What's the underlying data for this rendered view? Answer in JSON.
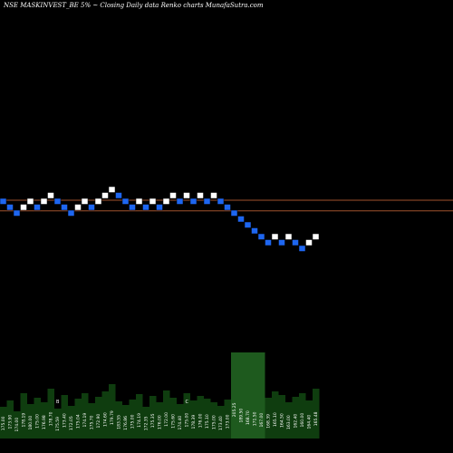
{
  "header": {
    "title": "NSE MASKINVEST_BE 5% ~  Closing Daily data  Renko  charts MunafaSutra.com"
  },
  "colors": {
    "background": "#000000",
    "up_brick": "#ffffff",
    "down_brick": "#1e66f0",
    "reference_line": "#a0522d",
    "volume_fill": "#0f3d0f",
    "volume_highlight": "#1e5a1e",
    "label_text": "#ffffff"
  },
  "chart_data": {
    "type": "renko",
    "bricks": [
      {
        "level": 0,
        "dir": "down"
      },
      {
        "level": -1,
        "dir": "down"
      },
      {
        "level": -2,
        "dir": "down"
      },
      {
        "level": -1,
        "dir": "up"
      },
      {
        "level": 0,
        "dir": "up"
      },
      {
        "level": -1,
        "dir": "down"
      },
      {
        "level": 0,
        "dir": "up"
      },
      {
        "level": 1,
        "dir": "up"
      },
      {
        "level": 0,
        "dir": "down"
      },
      {
        "level": -1,
        "dir": "down"
      },
      {
        "level": -2,
        "dir": "down"
      },
      {
        "level": -1,
        "dir": "up"
      },
      {
        "level": 0,
        "dir": "up"
      },
      {
        "level": -1,
        "dir": "down"
      },
      {
        "level": 0,
        "dir": "up"
      },
      {
        "level": 1,
        "dir": "up"
      },
      {
        "level": 2,
        "dir": "up"
      },
      {
        "level": 1,
        "dir": "down"
      },
      {
        "level": 0,
        "dir": "down"
      },
      {
        "level": -1,
        "dir": "down"
      },
      {
        "level": 0,
        "dir": "up"
      },
      {
        "level": -1,
        "dir": "down"
      },
      {
        "level": 0,
        "dir": "up"
      },
      {
        "level": -1,
        "dir": "down"
      },
      {
        "level": 0,
        "dir": "up"
      },
      {
        "level": 1,
        "dir": "up"
      },
      {
        "level": 0,
        "dir": "down"
      },
      {
        "level": 1,
        "dir": "up"
      },
      {
        "level": 0,
        "dir": "down"
      },
      {
        "level": 1,
        "dir": "up"
      },
      {
        "level": 0,
        "dir": "down"
      },
      {
        "level": 1,
        "dir": "up"
      },
      {
        "level": 0,
        "dir": "down"
      },
      {
        "level": -1,
        "dir": "down"
      },
      {
        "level": -2,
        "dir": "down"
      },
      {
        "level": -3,
        "dir": "down"
      },
      {
        "level": -4,
        "dir": "down"
      },
      {
        "level": -5,
        "dir": "down"
      },
      {
        "level": -6,
        "dir": "down"
      },
      {
        "level": -7,
        "dir": "down"
      },
      {
        "level": -6,
        "dir": "up"
      },
      {
        "level": -7,
        "dir": "down"
      },
      {
        "level": -6,
        "dir": "up"
      },
      {
        "level": -7,
        "dir": "down"
      },
      {
        "level": -8,
        "dir": "down"
      },
      {
        "level": -7,
        "dir": "up"
      },
      {
        "level": -6,
        "dir": "up"
      }
    ],
    "reference_line_levels": [
      0,
      -1.8
    ],
    "volume_heights": [
      0.35,
      0.42,
      0.3,
      0.5,
      0.38,
      0.45,
      0.4,
      0.55,
      0.33,
      0.48,
      0.36,
      0.44,
      0.5,
      0.39,
      0.46,
      0.52,
      0.6,
      0.41,
      0.37,
      0.43,
      0.49,
      0.35,
      0.47,
      0.4,
      0.53,
      0.45,
      0.38,
      0.5,
      0.42,
      0.47,
      0.44,
      0.4,
      0.36,
      0.43,
      0.95,
      0.7,
      0.6,
      0.55,
      0.5,
      0.45,
      0.52,
      0.48,
      0.4,
      0.46,
      0.5,
      0.42,
      0.55
    ],
    "volume_labels": [
      "175.00",
      "173.90",
      "174.00",
      "178.19",
      "180.00",
      "175.00",
      "176.98",
      "178.70",
      "175.59",
      "173.40",
      "172.05",
      "175.04",
      "174.19",
      "175.70",
      "172.90",
      "174.60",
      "179.79",
      "183.55",
      "176.86",
      "175.00",
      "174.19",
      "172.35",
      "175.35",
      "176.00",
      "172.00",
      "175.60",
      "174.40",
      "175.00",
      "178.39",
      "176.00",
      "175.10",
      "175.00",
      "173.40",
      "173.00",
      "205.25",
      "189.50",
      "168.70",
      "171.50",
      "167.00",
      "168.39",
      "165.10",
      "164.50",
      "163.00",
      "162.40",
      "160.00",
      "164.40",
      "165.48"
    ],
    "volume_markers": [
      {
        "index": 8,
        "text": "B"
      },
      {
        "index": 27,
        "text": "C"
      }
    ]
  }
}
